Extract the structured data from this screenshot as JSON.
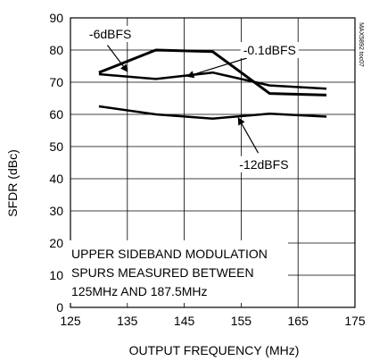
{
  "chart_data": {
    "type": "line",
    "title": "",
    "xlabel": "OUTPUT FREQUENCY (MHz)",
    "ylabel": "SFDR (dBc)",
    "xlim": [
      125,
      175
    ],
    "ylim": [
      0,
      90
    ],
    "xticks": [
      125,
      135,
      145,
      155,
      165,
      175
    ],
    "yticks": [
      0,
      10,
      20,
      30,
      40,
      50,
      60,
      70,
      80,
      90
    ],
    "grid": true,
    "series": [
      {
        "name": "-0.1dBFS",
        "x": [
          130,
          140,
          150,
          160,
          170
        ],
        "y": [
          73,
          80,
          79.5,
          66.5,
          66
        ]
      },
      {
        "name": "-6dBFS",
        "x": [
          130,
          140,
          150,
          160,
          170
        ],
        "y": [
          72.5,
          71,
          73,
          69,
          68
        ]
      },
      {
        "name": "-12dBFS",
        "x": [
          130,
          140,
          150,
          160,
          170
        ],
        "y": [
          62.5,
          60,
          58.7,
          60.2,
          59.3
        ]
      }
    ],
    "note_lines": [
      "UPPER SIDEBAND MODULATION",
      "SPURS MEASURED BETWEEN",
      "125MHz AND 187.5MHz"
    ],
    "side_id": "MAX5892 toc07"
  }
}
